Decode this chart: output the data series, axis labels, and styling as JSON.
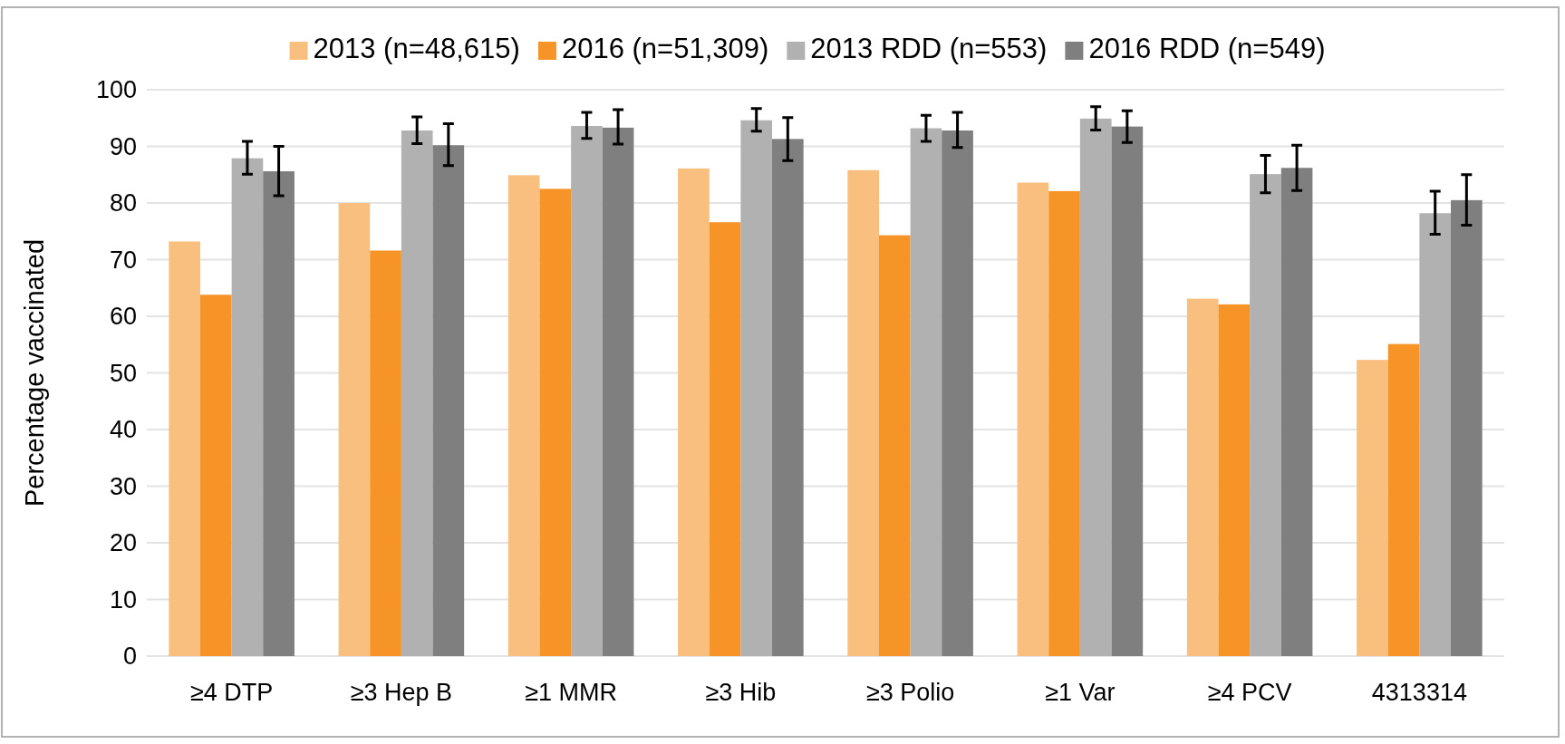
{
  "chart_data": {
    "type": "bar",
    "ylabel": "Percentage vaccinated",
    "categories": [
      "≥4 DTP",
      "≥3 Hep B",
      "≥1 MMR",
      "≥3 Hib",
      "≥3 Polio",
      "≥1 Var",
      "≥4 PCV",
      "4313314"
    ],
    "series": [
      {
        "name": "2013 (n=48,615)",
        "color": "#f8bf7e",
        "values": [
          73.2,
          80.0,
          84.9,
          86.1,
          85.8,
          83.6,
          63.1,
          52.3
        ]
      },
      {
        "name": "2016 (n=51,309)",
        "color": "#f79428",
        "values": [
          63.8,
          71.6,
          82.5,
          76.6,
          74.3,
          82.1,
          62.1,
          55.1
        ]
      },
      {
        "name": "2013 RDD (n=553)",
        "color": "#b1b1b1",
        "values": [
          87.9,
          92.8,
          93.6,
          94.6,
          93.2,
          94.9,
          85.1,
          78.2
        ],
        "errors": [
          [
            85.1,
            90.9
          ],
          [
            90.5,
            95.2
          ],
          [
            91.4,
            96.0
          ],
          [
            92.7,
            96.7
          ],
          [
            90.9,
            95.5
          ],
          [
            92.9,
            97.0
          ],
          [
            81.8,
            88.4
          ],
          [
            74.5,
            82.1
          ]
        ]
      },
      {
        "name": "2016 RDD (n=549)",
        "color": "#7f7f7f",
        "values": [
          85.6,
          90.2,
          93.3,
          91.3,
          92.8,
          93.5,
          86.2,
          80.5
        ],
        "errors": [
          [
            81.3,
            90.0
          ],
          [
            86.6,
            94.0
          ],
          [
            90.4,
            96.5
          ],
          [
            87.5,
            95.1
          ],
          [
            89.8,
            96.0
          ],
          [
            90.7,
            96.3
          ],
          [
            82.2,
            90.2
          ],
          [
            76.1,
            85.0
          ]
        ]
      }
    ],
    "ylim": [
      0,
      100
    ],
    "yticks": [
      0,
      10,
      20,
      30,
      40,
      50,
      60,
      70,
      80,
      90,
      100
    ],
    "grid": "y",
    "legend": "top"
  }
}
